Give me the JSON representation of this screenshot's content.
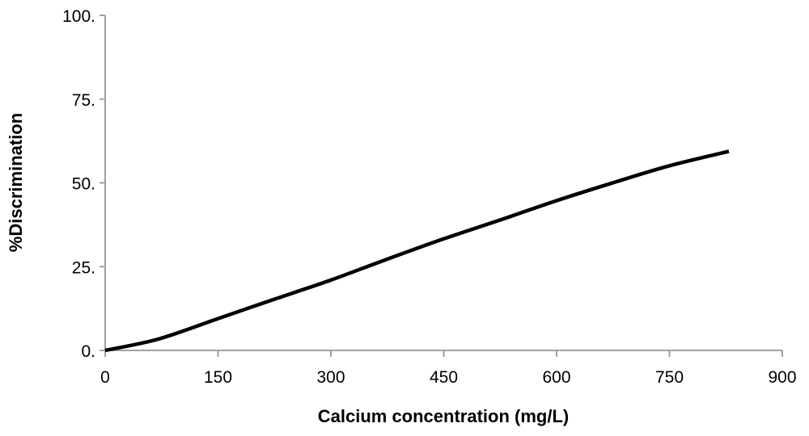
{
  "chart_data": {
    "type": "line",
    "title": "",
    "xlabel": "Calcium concentration (mg/L)",
    "ylabel": "%Discrimination",
    "xlim": [
      0,
      900
    ],
    "ylim": [
      0,
      100
    ],
    "xticks": [
      "0",
      "150",
      "300",
      "450",
      "600",
      "750",
      "900"
    ],
    "yticks": [
      "0.",
      "25.",
      "50.",
      "75.",
      "100."
    ],
    "xtick_values": [
      0,
      150,
      300,
      450,
      600,
      750,
      900
    ],
    "ytick_values": [
      0,
      25,
      50,
      75,
      100
    ],
    "grid": false,
    "series": [
      {
        "name": "%Discrimination",
        "color": "#000000",
        "x": [
          0,
          71,
          150,
          224,
          300,
          372,
          450,
          526,
          600,
          673,
          750,
          829
        ],
        "y": [
          0,
          3.4,
          9.5,
          15.2,
          21.0,
          27.0,
          33.3,
          39.0,
          44.7,
          49.9,
          55.1,
          59.4
        ]
      }
    ]
  }
}
